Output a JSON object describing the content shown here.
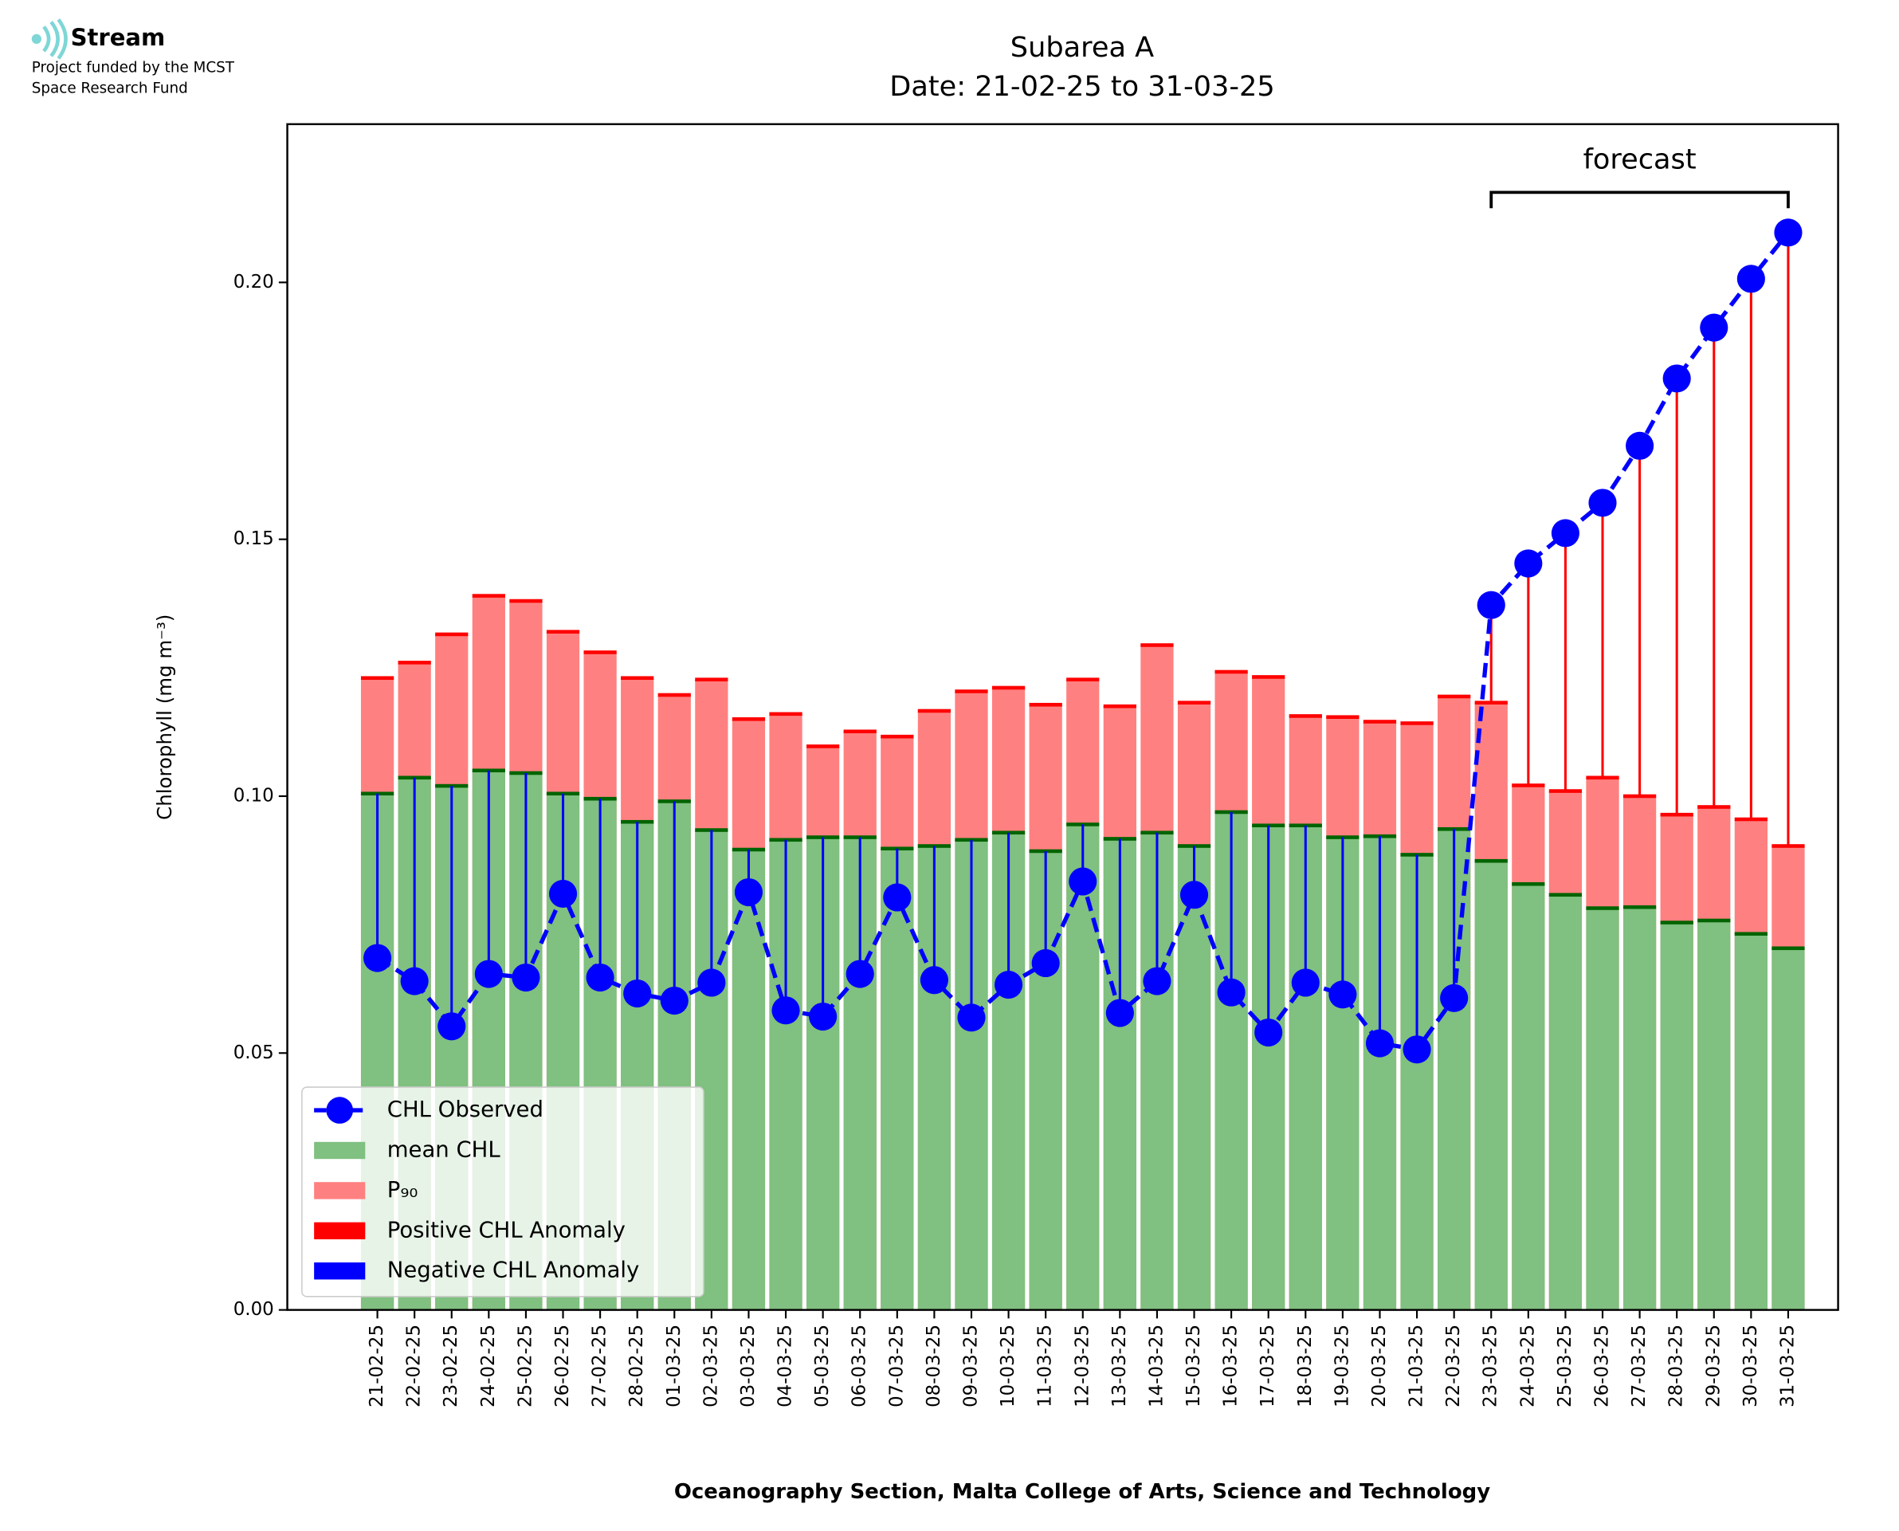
{
  "logo": {
    "name": "Stream",
    "lines": [
      "Project funded by the MCST",
      "Space Research Fund"
    ]
  },
  "chart_data": {
    "type": "bar",
    "title": "Subarea A",
    "subtitle": "Date: 21-02-25 to 31-03-25",
    "x_label": "Oceanography Section, Malta College of Arts, Science and Technology",
    "y_label": "Chlorophyll (mg m⁻³)",
    "annotation": "forecast",
    "forecast_range": [
      "23-03-25",
      "31-03-25"
    ],
    "categories": [
      "21-02-25",
      "22-02-25",
      "23-02-25",
      "24-02-25",
      "25-02-25",
      "26-02-25",
      "27-02-25",
      "28-02-25",
      "01-03-25",
      "02-03-25",
      "03-03-25",
      "04-03-25",
      "05-03-25",
      "06-03-25",
      "07-03-25",
      "08-03-25",
      "09-03-25",
      "10-03-25",
      "11-03-25",
      "12-03-25",
      "13-03-25",
      "14-03-25",
      "15-03-25",
      "16-03-25",
      "17-03-25",
      "18-03-25",
      "19-03-25",
      "20-03-25",
      "21-03-25",
      "22-03-25",
      "23-03-25",
      "24-03-25",
      "25-03-25",
      "26-03-25",
      "27-03-25",
      "28-03-25",
      "29-03-25",
      "30-03-25",
      "31-03-25"
    ],
    "series": [
      {
        "name": "CHL Observed",
        "color": "#0000ff",
        "values": [
          0.0685,
          0.064,
          0.0552,
          0.0654,
          0.0647,
          0.081,
          0.0647,
          0.0616,
          0.0602,
          0.0637,
          0.0813,
          0.0583,
          0.0571,
          0.0654,
          0.0803,
          0.0642,
          0.0569,
          0.0633,
          0.0675,
          0.0834,
          0.0578,
          0.064,
          0.0808,
          0.0618,
          0.054,
          0.0637,
          0.0614,
          0.0519,
          0.0507,
          0.0607,
          0.1372,
          0.1453,
          0.1512,
          0.1571,
          0.1682,
          0.1813,
          0.1912,
          0.2007,
          0.2097
        ]
      },
      {
        "name": "mean CHL",
        "color": "#80c080",
        "values": [
          0.1005,
          0.1036,
          0.102,
          0.105,
          0.1045,
          0.1005,
          0.0995,
          0.095,
          0.099,
          0.0934,
          0.0896,
          0.0915,
          0.092,
          0.092,
          0.0898,
          0.0903,
          0.0915,
          0.0929,
          0.0893,
          0.0945,
          0.0917,
          0.0929,
          0.0903,
          0.0969,
          0.0943,
          0.0943,
          0.092,
          0.0922,
          0.0886,
          0.0936,
          0.0874,
          0.0829,
          0.0808,
          0.0782,
          0.0784,
          0.0754,
          0.0758,
          0.0732,
          0.0704
        ]
      },
      {
        "name": "P₉₀",
        "color": "#ff8080",
        "values": [
          0.123,
          0.126,
          0.1315,
          0.139,
          0.138,
          0.132,
          0.128,
          0.123,
          0.1197,
          0.1227,
          0.115,
          0.116,
          0.1097,
          0.1126,
          0.1116,
          0.1166,
          0.1204,
          0.1211,
          0.1178,
          0.1227,
          0.1175,
          0.1294,
          0.1182,
          0.1242,
          0.1232,
          0.1156,
          0.1154,
          0.1145,
          0.1142,
          0.1194,
          0.1182,
          0.1021,
          0.101,
          0.1036,
          0.1,
          0.0964,
          0.0979,
          0.0955,
          0.0903
        ]
      }
    ],
    "anomalies": [
      {
        "name": "Positive CHL Anomaly",
        "color": "#ff0000"
      },
      {
        "name": "Negative CHL Anomaly",
        "color": "#0000ff"
      }
    ],
    "ylim": [
      0,
      0.2308
    ],
    "yticks": [
      {
        "value": 0,
        "label": "0.00"
      },
      {
        "value": 0.05,
        "label": "0.05"
      },
      {
        "value": 0.1,
        "label": "0.10"
      },
      {
        "value": 0.15,
        "label": "0.15"
      },
      {
        "value": 0.2,
        "label": "0.20"
      }
    ],
    "legend": "lower left"
  }
}
